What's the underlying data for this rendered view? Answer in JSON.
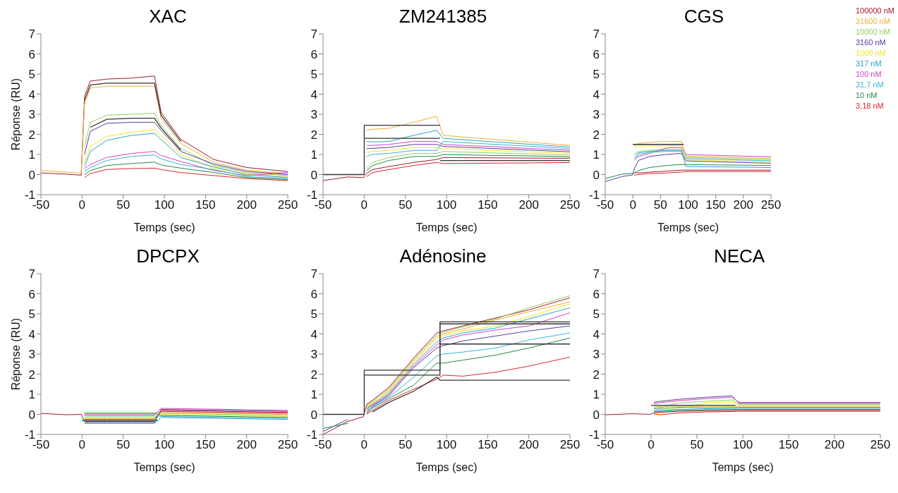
{
  "chart_data": [
    {
      "type": "line",
      "title": "XAC",
      "xlabel": "Temps (sec)",
      "ylabel": "Réponse (RU)",
      "xlim": [
        -50,
        250
      ],
      "xticks": [
        -50,
        0,
        50,
        100,
        150,
        200,
        250
      ],
      "ylim": [
        -1,
        7
      ],
      "yticks": [
        -1,
        0,
        1,
        2,
        3,
        4,
        5,
        6,
        7
      ],
      "grid": false,
      "legend": false,
      "x": [
        -50,
        -20,
        -1,
        3,
        10,
        30,
        60,
        88,
        96,
        120,
        160,
        200,
        250
      ],
      "series": [
        {
          "color": "#a3182c",
          "values": [
            0.08,
            0.02,
            -0.03,
            3.9,
            4.65,
            4.75,
            4.8,
            4.9,
            3.1,
            1.75,
            0.75,
            0.35,
            0.15
          ]
        },
        {
          "color": "#f0b030",
          "values": [
            0.2,
            0.12,
            0.07,
            3.5,
            4.3,
            4.4,
            4.4,
            4.4,
            2.8,
            1.55,
            0.6,
            0.22,
            0.05
          ]
        },
        {
          "color": "#94cf5c",
          "values": [
            null,
            null,
            null,
            1.4,
            2.6,
            2.95,
            3.0,
            3.05,
            2.45,
            1.3,
            0.45,
            0.1,
            -0.05
          ]
        },
        {
          "color": "#5b3b9c",
          "values": [
            null,
            null,
            null,
            1.0,
            2.15,
            2.55,
            2.6,
            2.6,
            2.2,
            1.15,
            0.52,
            0.16,
            0.0
          ]
        },
        {
          "color": "#f5e42a",
          "values": [
            null,
            null,
            null,
            0.6,
            1.4,
            1.9,
            2.1,
            2.25,
            1.95,
            1.0,
            0.3,
            0.05,
            -0.1
          ]
        },
        {
          "color": "#2aa4c4",
          "values": [
            null,
            null,
            null,
            0.4,
            1.15,
            1.7,
            1.95,
            2.05,
            1.75,
            0.85,
            0.38,
            0.0,
            -0.15
          ]
        },
        {
          "color": "#d043c4",
          "values": [
            null,
            null,
            null,
            0.3,
            0.5,
            0.85,
            1.05,
            1.15,
            0.95,
            0.65,
            0.2,
            -0.05,
            0.1
          ]
        },
        {
          "color": "#38b4d8",
          "values": [
            null,
            null,
            null,
            0.15,
            0.35,
            0.7,
            0.9,
            0.98,
            0.78,
            0.5,
            0.25,
            -0.1,
            -0.2
          ]
        },
        {
          "color": "#208a48",
          "values": [
            null,
            null,
            null,
            0.0,
            0.2,
            0.45,
            0.55,
            0.62,
            0.48,
            0.32,
            0.1,
            -0.15,
            -0.25
          ]
        },
        {
          "color": "#e0242a",
          "values": [
            null,
            null,
            null,
            -0.15,
            0.05,
            0.25,
            0.3,
            0.32,
            0.25,
            0.1,
            -0.05,
            -0.2,
            -0.3
          ]
        },
        {
          "color": "#333333",
          "x": [
            3,
            10,
            30,
            60,
            88,
            96,
            120
          ],
          "values": [
            3.7,
            4.45,
            4.55,
            4.55,
            4.55,
            2.95,
            1.65
          ]
        },
        {
          "color": "#333333",
          "x": [
            10,
            30,
            60,
            88,
            96,
            120
          ],
          "values": [
            2.35,
            2.75,
            2.8,
            2.8,
            2.32,
            1.22
          ]
        }
      ]
    },
    {
      "type": "line",
      "title": "ZM241385",
      "xlabel": "Temps (sec)",
      "xlim": [
        -50,
        250
      ],
      "xticks": [
        -50,
        0,
        50,
        100,
        150,
        200,
        250
      ],
      "ylim": [
        -1,
        7
      ],
      "yticks": [
        -1,
        0,
        1,
        2,
        3,
        4,
        5,
        6,
        7
      ],
      "grid": false,
      "legend": false,
      "x": [
        -50,
        -20,
        -1,
        3,
        10,
        30,
        60,
        88,
        96,
        120,
        160,
        200,
        250
      ],
      "series": [
        {
          "color": "#a3182c",
          "values": [
            -0.3,
            -0.12,
            -0.15,
            0.05,
            0.25,
            0.4,
            0.6,
            0.75,
            0.85,
            0.84,
            0.83,
            0.82,
            0.81
          ]
        },
        {
          "color": "#f0b030",
          "values": [
            null,
            null,
            null,
            2.2,
            2.25,
            2.3,
            2.6,
            2.9,
            1.95,
            1.87,
            1.74,
            1.61,
            1.45
          ]
        },
        {
          "color": "#94cf5c",
          "values": [
            null,
            null,
            null,
            0.3,
            0.6,
            0.85,
            1.05,
            1.05,
            1.15,
            1.12,
            1.07,
            1.03,
            0.97
          ]
        },
        {
          "color": "#5b3b9c",
          "values": [
            null,
            null,
            null,
            1.3,
            1.3,
            1.35,
            1.5,
            1.5,
            1.4,
            1.36,
            1.29,
            1.22,
            1.13
          ]
        },
        {
          "color": "#f5e42a",
          "values": [
            null,
            null,
            null,
            1.1,
            1.15,
            1.2,
            1.35,
            1.35,
            1.3,
            1.26,
            1.2,
            1.13,
            1.05
          ]
        },
        {
          "color": "#2aa4c4",
          "values": [
            null,
            null,
            null,
            1.65,
            1.62,
            1.65,
            1.95,
            2.2,
            1.8,
            1.73,
            1.62,
            1.51,
            1.37
          ]
        },
        {
          "color": "#d043c4",
          "values": [
            null,
            null,
            null,
            1.45,
            1.45,
            1.5,
            1.65,
            1.65,
            1.5,
            1.45,
            1.38,
            1.3,
            1.21
          ]
        },
        {
          "color": "#38b4d8",
          "values": [
            null,
            null,
            null,
            0.9,
            1.0,
            1.05,
            1.2,
            1.2,
            1.65,
            1.59,
            1.5,
            1.41,
            1.29
          ]
        },
        {
          "color": "#208a48",
          "values": [
            null,
            null,
            null,
            0.2,
            0.45,
            0.7,
            0.9,
            0.9,
            1.0,
            0.98,
            0.95,
            0.93,
            0.89
          ]
        },
        {
          "color": "#e0242a",
          "values": [
            null,
            null,
            null,
            -0.1,
            0.1,
            0.25,
            0.45,
            0.6,
            0.55,
            0.56,
            0.57,
            0.58,
            0.6
          ]
        },
        {
          "color": "#333333",
          "x": [
            -50,
            0,
            0,
            92
          ],
          "values": [
            0,
            0,
            2.45,
            2.45
          ]
        },
        {
          "color": "#333333",
          "x": [
            0,
            92
          ],
          "values": [
            1.8,
            1.8
          ]
        },
        {
          "color": "#333333",
          "x": [
            92,
            250
          ],
          "values": [
            0.7,
            0.7
          ]
        }
      ]
    },
    {
      "type": "line",
      "title": "CGS",
      "xlabel": "Temps (sec)",
      "xlim": [
        -50,
        250
      ],
      "xticks": [
        -50,
        0,
        50,
        100,
        150,
        200,
        250
      ],
      "ylim": [
        -1,
        7
      ],
      "yticks": [
        -1,
        0,
        1,
        2,
        3,
        4,
        5,
        6,
        7
      ],
      "grid": false,
      "legend": "right",
      "x": [
        -50,
        -20,
        -1,
        3,
        10,
        30,
        60,
        88,
        96,
        120,
        160,
        200,
        250
      ],
      "series": [
        {
          "name": "100000 nM",
          "color": "#a3182c",
          "values": [
            null,
            null,
            null,
            0.12,
            0.08,
            0.12,
            0.17,
            0.22,
            0.22,
            0.22,
            0.22,
            0.22,
            0.22
          ]
        },
        {
          "name": "31600 nM",
          "color": "#f0b030",
          "values": [
            null,
            null,
            null,
            1.4,
            1.55,
            1.6,
            1.65,
            1.65,
            0.92,
            0.9,
            0.87,
            0.84,
            0.8
          ]
        },
        {
          "name": "10000 nM",
          "color": "#94cf5c",
          "values": [
            null,
            null,
            null,
            1.0,
            1.15,
            1.2,
            1.25,
            1.25,
            0.86,
            0.84,
            0.81,
            0.78,
            0.74
          ]
        },
        {
          "name": "3160 nM",
          "color": "#5b3b9c",
          "values": [
            -0.35,
            -0.1,
            -0.02,
            0.3,
            0.7,
            0.9,
            1.0,
            1.05,
            0.68,
            0.66,
            0.63,
            0.6,
            0.56
          ]
        },
        {
          "name": "1000 nM",
          "color": "#f5e42a",
          "values": [
            null,
            null,
            null,
            1.3,
            1.42,
            1.42,
            1.43,
            1.43,
            0.74,
            0.72,
            0.69,
            0.66,
            0.62
          ]
        },
        {
          "name": "317 nM",
          "color": "#2aa4c4",
          "values": [
            null,
            null,
            null,
            0.9,
            1.08,
            1.15,
            1.2,
            1.2,
            0.4,
            0.39,
            0.38,
            0.37,
            0.35
          ]
        },
        {
          "name": "100 nM",
          "color": "#d043c4",
          "values": [
            null,
            null,
            null,
            0.8,
            0.9,
            1.05,
            1.32,
            1.35,
            1.0,
            0.98,
            0.95,
            0.92,
            0.88
          ]
        },
        {
          "name": "31,7 nM",
          "color": "#38b4d8",
          "values": [
            null,
            null,
            null,
            0.7,
            1.0,
            1.1,
            1.15,
            1.15,
            0.8,
            0.78,
            0.75,
            0.72,
            0.68
          ]
        },
        {
          "name": "10 nM",
          "color": "#208a48",
          "values": [
            -0.2,
            0.02,
            0.06,
            0.05,
            0.2,
            0.35,
            0.45,
            0.5,
            0.5,
            0.49,
            0.48,
            0.47,
            0.45
          ]
        },
        {
          "name": "3,18 nM",
          "color": "#e0242a",
          "values": [
            null,
            null,
            null,
            -0.03,
            0.0,
            0.05,
            0.08,
            0.12,
            0.15,
            0.15,
            0.15,
            0.15,
            0.15
          ]
        },
        {
          "color": "#333333",
          "x": [
            0,
            92
          ],
          "values": [
            1.5,
            1.5
          ]
        }
      ]
    },
    {
      "type": "line",
      "title": "DPCPX",
      "xlabel": "Temps (sec)",
      "ylabel": "Réponse (RU)",
      "xlim": [
        -50,
        250
      ],
      "xticks": [
        -50,
        0,
        50,
        100,
        150,
        200,
        250
      ],
      "ylim": [
        -1,
        7
      ],
      "yticks": [
        -1,
        0,
        1,
        2,
        3,
        4,
        5,
        6,
        7
      ],
      "grid": false,
      "legend": false,
      "x": [
        -50,
        -20,
        -1,
        3,
        10,
        30,
        60,
        88,
        96,
        120,
        160,
        200,
        250
      ],
      "series": [
        {
          "color": "#a3182c",
          "values": [
            0.05,
            -0.02,
            0.0,
            -0.35,
            -0.35,
            -0.35,
            -0.35,
            -0.35,
            0.2,
            0.18,
            0.16,
            0.13,
            0.1
          ]
        },
        {
          "color": "#f0b030",
          "values": [
            null,
            null,
            null,
            -0.2,
            -0.2,
            -0.2,
            -0.2,
            -0.2,
            0.1,
            0.08,
            0.06,
            0.03,
            0
          ]
        },
        {
          "color": "#94cf5c",
          "values": [
            null,
            null,
            null,
            0.1,
            0.1,
            0.1,
            0.1,
            0.1,
            0.05,
            0.03,
            0.01,
            -0.02,
            -0.05
          ]
        },
        {
          "color": "#5b3b9c",
          "values": [
            null,
            null,
            null,
            -0.4,
            -0.4,
            -0.4,
            -0.4,
            -0.4,
            0.25,
            0.23,
            0.21,
            0.18,
            0.15
          ]
        },
        {
          "color": "#f5e42a",
          "values": [
            null,
            null,
            null,
            -0.14,
            -0.14,
            -0.14,
            -0.14,
            -0.14,
            0,
            -0.02,
            -0.04,
            -0.07,
            -0.1
          ]
        },
        {
          "color": "#2aa4c4",
          "values": [
            null,
            null,
            null,
            -0.45,
            -0.45,
            -0.45,
            -0.45,
            -0.45,
            -0.15,
            -0.17,
            -0.19,
            -0.22,
            -0.25
          ]
        },
        {
          "color": "#d043c4",
          "values": [
            null,
            null,
            null,
            -0.02,
            -0.02,
            -0.02,
            -0.02,
            -0.02,
            0.3,
            0.28,
            0.26,
            0.23,
            0.2
          ]
        },
        {
          "color": "#38b4d8",
          "values": [
            null,
            null,
            null,
            -0.08,
            -0.08,
            -0.08,
            -0.08,
            -0.08,
            -0.1,
            -0.12,
            -0.14,
            -0.17,
            -0.2
          ]
        },
        {
          "color": "#208a48",
          "values": [
            null,
            null,
            null,
            0.04,
            0.04,
            0.04,
            0.04,
            0.04,
            -0.05,
            -0.07,
            -0.09,
            -0.12,
            -0.15
          ]
        },
        {
          "color": "#e0242a",
          "values": [
            null,
            null,
            null,
            -0.25,
            -0.25,
            -0.25,
            -0.25,
            -0.25,
            0.15,
            0.13,
            0.11,
            0.08,
            0.05
          ]
        },
        {
          "color": "#333333",
          "x": [
            0,
            92
          ],
          "values": [
            -0.3,
            -0.3
          ]
        }
      ]
    },
    {
      "type": "line",
      "title": "Adénosine",
      "xlabel": "Temps (sec)",
      "xlim": [
        -50,
        250
      ],
      "xticks": [
        -50,
        0,
        50,
        100,
        150,
        200,
        250
      ],
      "ylim": [
        -1,
        7
      ],
      "yticks": [
        -1,
        0,
        1,
        2,
        3,
        4,
        5,
        6,
        7
      ],
      "grid": false,
      "legend": false,
      "x": [
        -50,
        -20,
        -1,
        3,
        10,
        30,
        60,
        88,
        96,
        120,
        160,
        200,
        250
      ],
      "series": [
        {
          "color": "#a3182c",
          "values": [
            -1.0,
            -0.35,
            -0.12,
            0.5,
            0.7,
            1.35,
            2.8,
            4.05,
            4.15,
            4.4,
            4.8,
            5.2,
            5.8
          ]
        },
        {
          "color": "#f0b030",
          "values": [
            null,
            null,
            null,
            0.35,
            0.55,
            1.21,
            2.64,
            3.85,
            4.0,
            4.25,
            4.7,
            5.1,
            5.6
          ]
        },
        {
          "color": "#94cf5c",
          "values": [
            null,
            null,
            null,
            0.45,
            0.65,
            1.28,
            2.72,
            3.95,
            4.08,
            4.35,
            4.75,
            5.3,
            5.9
          ]
        },
        {
          "color": "#5b3b9c",
          "values": [
            -0.85,
            -0.25,
            null,
            0.1,
            0.4,
            0.93,
            2.32,
            3.3,
            3.42,
            3.65,
            3.9,
            4.15,
            4.4
          ]
        },
        {
          "color": "#f5e42a",
          "values": [
            null,
            null,
            null,
            0.4,
            0.6,
            1.14,
            2.56,
            3.75,
            3.9,
            4.15,
            4.4,
            4.85,
            5.5
          ]
        },
        {
          "color": "#2aa4c4",
          "values": [
            null,
            null,
            null,
            0.3,
            0.5,
            1.07,
            2.48,
            3.6,
            3.8,
            4.05,
            4.3,
            4.75,
            5.3
          ]
        },
        {
          "color": "#d043c4",
          "values": [
            null,
            null,
            null,
            0.25,
            0.45,
            1.0,
            2.4,
            3.45,
            3.7,
            3.95,
            4.2,
            4.4,
            5.05
          ]
        },
        {
          "color": "#38b4d8",
          "values": [
            null,
            null,
            null,
            0.2,
            0.35,
            0.86,
            1.85,
            2.9,
            3.0,
            3.1,
            3.3,
            3.7,
            4.05
          ]
        },
        {
          "color": "#208a48",
          "values": [
            -0.7,
            -0.45,
            null,
            0.05,
            0.3,
            0.79,
            1.45,
            2.55,
            2.55,
            2.7,
            2.95,
            3.3,
            3.8
          ]
        },
        {
          "color": "#e0242a",
          "values": [
            null,
            null,
            null,
            0.0,
            0.2,
            0.7,
            1.25,
            1.75,
            1.95,
            1.9,
            2.1,
            2.4,
            2.85
          ]
        },
        {
          "color": "#333333",
          "x": [
            -50,
            0,
            0,
            92,
            92,
            250
          ],
          "values": [
            0,
            0,
            2.2,
            2.2,
            4.6,
            4.6
          ]
        },
        {
          "color": "#333333",
          "x": [
            0,
            92,
            92,
            250
          ],
          "values": [
            1.95,
            1.95,
            4.5,
            4.5
          ]
        },
        {
          "color": "#333333",
          "x": [
            92,
            250
          ],
          "values": [
            3.5,
            3.5
          ]
        },
        {
          "color": "#333333",
          "x": [
            10,
            30,
            60,
            88,
            92,
            250
          ],
          "values": [
            0.12,
            0.6,
            1.15,
            1.85,
            1.7,
            1.7
          ]
        }
      ]
    },
    {
      "type": "line",
      "title": "NECA",
      "xlabel": "Temps (sec)",
      "xlim": [
        -50,
        250
      ],
      "xticks": [
        -50,
        0,
        50,
        100,
        150,
        200,
        250
      ],
      "ylim": [
        -1,
        7
      ],
      "yticks": [
        -1,
        0,
        1,
        2,
        3,
        4,
        5,
        6,
        7
      ],
      "grid": false,
      "legend": false,
      "x": [
        -50,
        -20,
        -1,
        3,
        10,
        30,
        60,
        88,
        96,
        120,
        160,
        200,
        250
      ],
      "series": [
        {
          "color": "#a3182c",
          "values": [
            -0.02,
            0.03,
            0.0,
            0.08,
            0.1,
            0.15,
            0.18,
            0.19,
            0.2,
            0.2,
            0.2,
            0.2,
            0.2
          ]
        },
        {
          "color": "#f0b030",
          "values": [
            null,
            null,
            null,
            0.38,
            0.39,
            0.4,
            0.38,
            0.39,
            0.4,
            0.4,
            0.4,
            0.4,
            0.4
          ]
        },
        {
          "color": "#94cf5c",
          "values": [
            null,
            null,
            null,
            0.33,
            0.34,
            0.57,
            0.65,
            0.72,
            0.5,
            0.5,
            0.5,
            0.5,
            0.5
          ]
        },
        {
          "color": "#5b3b9c",
          "values": [
            null,
            null,
            null,
            0.6,
            0.65,
            0.75,
            0.85,
            0.92,
            0.55,
            0.55,
            0.55,
            0.55,
            0.55
          ]
        },
        {
          "color": "#f5e42a",
          "values": [
            null,
            null,
            null,
            0.23,
            0.25,
            0.3,
            0.57,
            0.62,
            0.45,
            0.45,
            0.45,
            0.45,
            0.45
          ]
        },
        {
          "color": "#2aa4c4",
          "values": [
            null,
            null,
            null,
            0.28,
            0.3,
            0.35,
            0.33,
            0.34,
            0.35,
            0.35,
            0.35,
            0.35,
            0.35
          ]
        },
        {
          "color": "#d043c4",
          "values": [
            null,
            null,
            null,
            0.53,
            0.58,
            0.68,
            0.78,
            0.85,
            0.6,
            0.6,
            0.6,
            0.6,
            0.6
          ]
        },
        {
          "color": "#38b4d8",
          "values": [
            null,
            null,
            null,
            0.18,
            0.2,
            0.25,
            0.28,
            0.29,
            0.3,
            0.3,
            0.3,
            0.3,
            0.3
          ]
        },
        {
          "color": "#208a48",
          "values": [
            null,
            null,
            null,
            0.13,
            0.15,
            0.2,
            0.23,
            0.24,
            0.25,
            0.25,
            0.25,
            0.25,
            0.25
          ]
        },
        {
          "color": "#e0242a",
          "values": [
            null,
            null,
            null,
            0.02,
            -0.02,
            0.07,
            0.12,
            0.14,
            0.15,
            0.15,
            0.15,
            0.15,
            0.15
          ]
        },
        {
          "color": "#333333",
          "x": [
            0,
            92
          ],
          "values": [
            0.45,
            0.45
          ]
        }
      ]
    }
  ]
}
